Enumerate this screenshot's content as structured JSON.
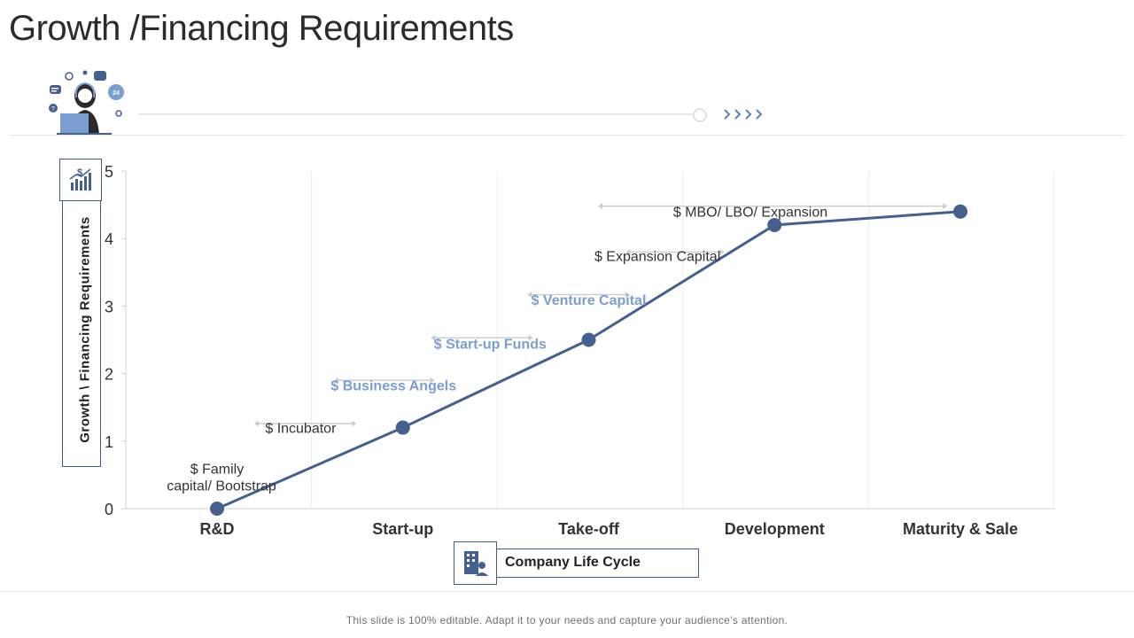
{
  "slide": {
    "title": "Growth /Financing Requirements",
    "footer_note": "This slide is 100% editable. Adapt it to your needs and capture your audience’s attention."
  },
  "icons": {
    "header_illustration": "customer-support-agent-icon",
    "ylabel_icon": "growth-chart-dollar-icon",
    "xlabel_icon": "office-building-person-icon"
  },
  "colors": {
    "series_line": "#44608f",
    "point": "#44608f",
    "accent_text": "#7b9ed0",
    "arrow": "#cccccc",
    "grid": "#ececec"
  },
  "chart_data": {
    "type": "line",
    "title": "",
    "xlabel": "Company  Life Cycle",
    "ylabel": "Growth \\ Financing  Requirements",
    "categories": [
      "R&D",
      "Start-up",
      "Take-off",
      "Development",
      "Maturity & Sale"
    ],
    "y_ticks": [
      "0",
      "1",
      "2",
      "3",
      "4",
      "5"
    ],
    "ylim": [
      0,
      5
    ],
    "grid": "vertical",
    "series": [
      {
        "values": [
          0,
          1.2,
          2.5,
          4.2,
          4.4
        ]
      }
    ],
    "annotations": [
      {
        "text": "$ Family",
        "text2": "capital/ Bootstrap",
        "emphasis": false,
        "x": 0.0,
        "y": 0.6,
        "arrow": false
      },
      {
        "text": "$ Incubator",
        "emphasis": false,
        "x": 0.45,
        "y": 1.2,
        "arrow": true,
        "x_from": 0.2,
        "x_to": 0.75,
        "arrow_y": 1.26
      },
      {
        "text": "$ Business Angels",
        "emphasis": true,
        "x": 0.95,
        "y": 1.83,
        "arrow": true,
        "x_from": 0.63,
        "x_to": 1.17,
        "arrow_y": 1.9
      },
      {
        "text": "$ Start-up Funds",
        "emphasis": true,
        "x": 1.47,
        "y": 2.45,
        "arrow": true,
        "x_from": 1.15,
        "x_to": 1.7,
        "arrow_y": 2.53
      },
      {
        "text": "$ Venture Capital",
        "emphasis": true,
        "x": 2.0,
        "y": 3.1,
        "arrow": true,
        "x_from": 1.67,
        "x_to": 2.22,
        "arrow_y": 3.17
      },
      {
        "text": "$ Expansion Capital",
        "emphasis": false,
        "x": 2.37,
        "y": 3.75,
        "arrow": true,
        "x_from": 2.2,
        "x_to": 2.73,
        "arrow_y": 3.8
      },
      {
        "text": "$ MBO/ LBO/ Expansion",
        "emphasis": false,
        "x": 2.87,
        "y": 4.4,
        "arrow": true,
        "x_from": 2.05,
        "x_to": 3.93,
        "arrow_y": 4.48
      }
    ]
  }
}
